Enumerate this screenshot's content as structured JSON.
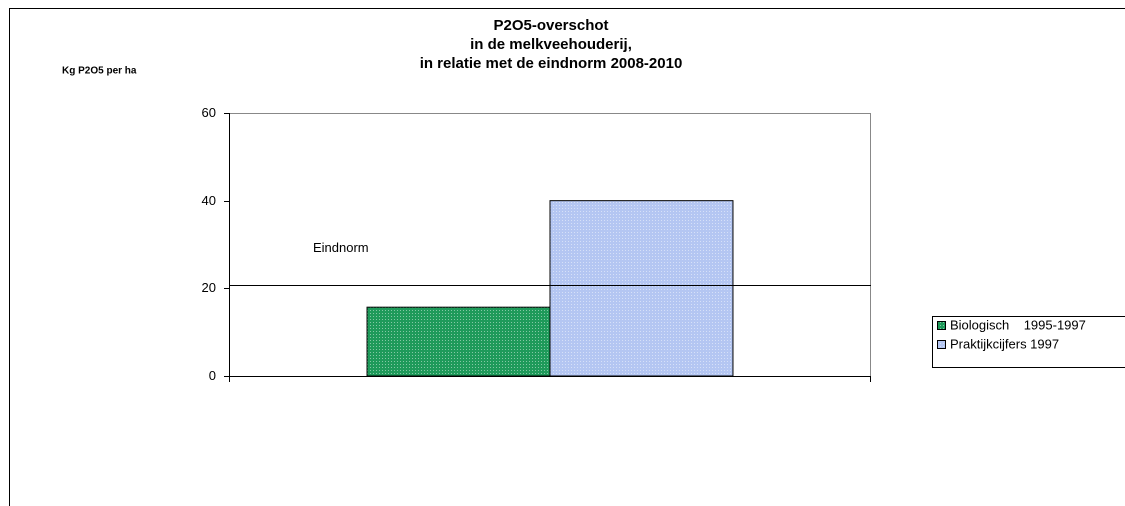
{
  "chart_data": {
    "type": "bar",
    "title": [
      "P2O5-overschot",
      "in de melkveehouderij,",
      "in relatie met de eindnorm 2008-2010"
    ],
    "y_label": "Kg P2O5  per ha",
    "categories": [
      null
    ],
    "series": [
      {
        "name": "Biologisch    1995-1997",
        "color": "#1e9a5a",
        "values": [
          15.7
        ]
      },
      {
        "name": "Praktijkcijfers 1997",
        "color": "#b4c6f2",
        "values": [
          40
        ]
      }
    ],
    "annotations": [
      {
        "text": "Eindnorm",
        "value": 20.8
      }
    ],
    "ylim": [
      0,
      60
    ],
    "yticks": [
      0,
      20,
      40,
      60
    ],
    "grid": false,
    "legend": "right"
  }
}
